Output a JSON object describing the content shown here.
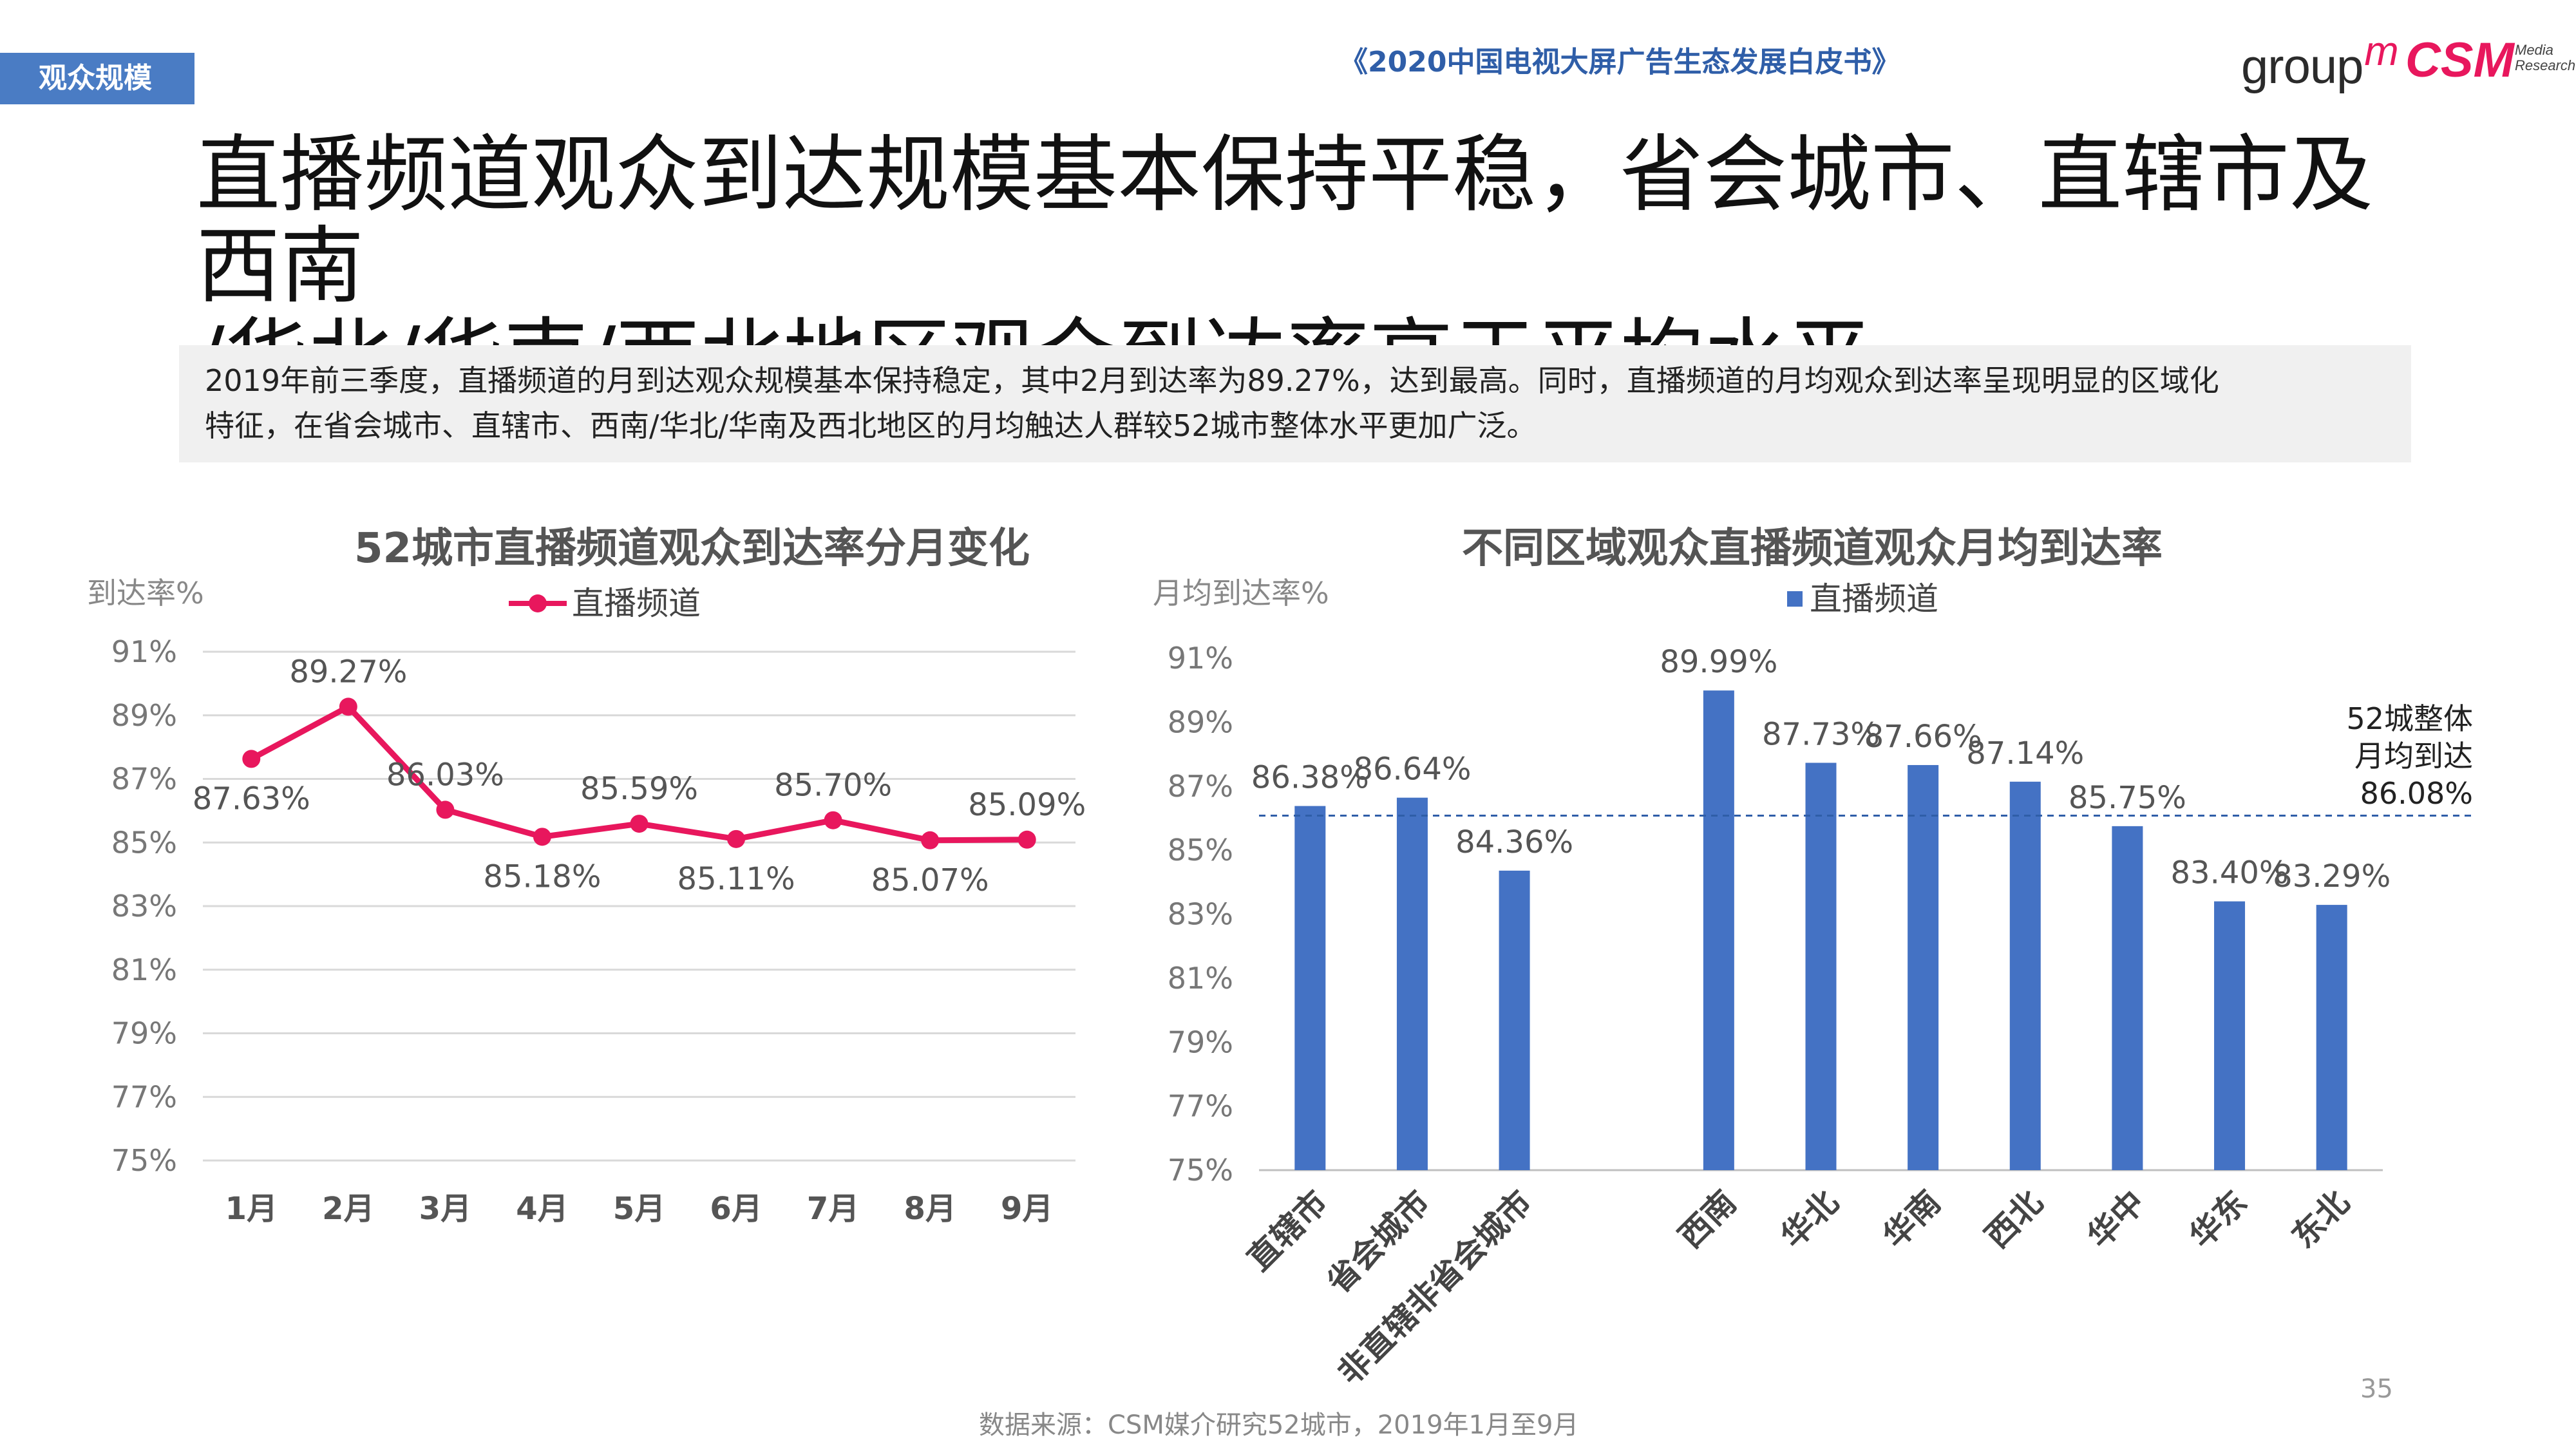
{
  "header": {
    "tag": "观众规模",
    "report_title": "《2020中国电视大屏广告生态发展白皮书》",
    "logo_groupm": "group",
    "logo_groupm_m": "m",
    "logo_csm": "CSM",
    "logo_csm_sub1": "Media",
    "logo_csm_sub2": "Research"
  },
  "headline": {
    "line1": "直播频道观众到达规模基本保持平稳，省会城市、直辖市及西南",
    "line2": "/华北/华南/西北地区观众到达率高于平均水平"
  },
  "summary": {
    "line1": "2019年前三季度，直播频道的月到达观众规模基本保持稳定，其中2月到达率为89.27%，达到最高。同时，直播频道的月均观众到达率呈现明显的区域化",
    "line2": "特征，在省会城市、直辖市、西南/华北/华南及西北地区的月均触达人群较52城市整体水平更加广泛。"
  },
  "colors": {
    "line": "#e8175d",
    "bar": "#4472c4",
    "accent": "#2f5ea8"
  },
  "chart_data": [
    {
      "type": "line",
      "title": "52城市直播频道观众到达率分月变化",
      "ylabel": "到达率%",
      "categories": [
        "1月",
        "2月",
        "3月",
        "4月",
        "5月",
        "6月",
        "7月",
        "8月",
        "9月"
      ],
      "series": [
        {
          "name": "直播频道",
          "values": [
            87.63,
            89.27,
            86.03,
            85.18,
            85.59,
            85.11,
            85.7,
            85.07,
            85.09
          ]
        }
      ],
      "data_labels": [
        "87.63%",
        "89.27%",
        "86.03%",
        "85.18%",
        "85.59%",
        "85.11%",
        "85.70%",
        "85.07%",
        "85.09%"
      ],
      "yticks": [
        "75%",
        "77%",
        "79%",
        "81%",
        "83%",
        "85%",
        "87%",
        "89%",
        "91%"
      ],
      "ylim": [
        75,
        91
      ],
      "grid": true,
      "legend": "top-center"
    },
    {
      "type": "bar",
      "title": "不同区域观众直播频道观众月均到达率",
      "ylabel": "月均到达率%",
      "categories": [
        "直辖市",
        "省会城市",
        "非直辖非省会城市",
        "西南",
        "华北",
        "华南",
        "西北",
        "华中",
        "华东",
        "东北"
      ],
      "series": [
        {
          "name": "直播频道",
          "values": [
            86.38,
            86.64,
            84.36,
            89.99,
            87.73,
            87.66,
            87.14,
            85.75,
            83.4,
            83.29
          ]
        }
      ],
      "data_labels": [
        "86.38%",
        "86.64%",
        "84.36%",
        "89.99%",
        "87.73%",
        "87.66%",
        "87.14%",
        "85.75%",
        "83.40%",
        "83.29%"
      ],
      "yticks": [
        "75%",
        "77%",
        "79%",
        "81%",
        "83%",
        "85%",
        "87%",
        "89%",
        "91%"
      ],
      "ylim": [
        75,
        91
      ],
      "grid": false,
      "legend": "top-left",
      "reference_line": {
        "value": 86.08,
        "label_lines": [
          "52城整体",
          "月均到达",
          "86.08%"
        ]
      }
    }
  ],
  "footer": {
    "source": "数据来源：CSM媒介研究52城市，2019年1月至9月",
    "page_number": "35"
  }
}
